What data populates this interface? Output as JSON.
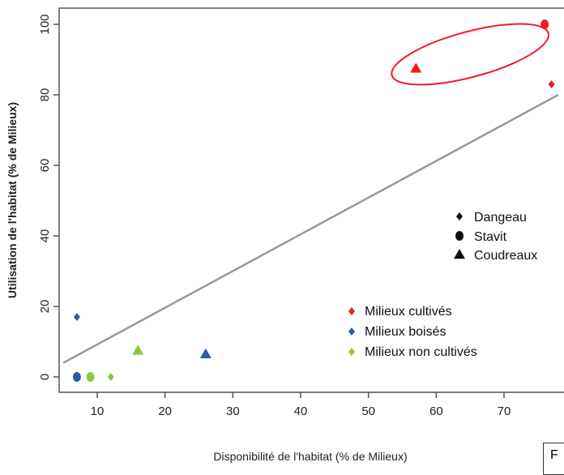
{
  "chart_data": {
    "type": "scatter",
    "xlabel": "Disponibilité de l'habitat (% de Milieux)",
    "ylabel": "Utilisation de l'habitat (% de Milieux)",
    "xlim": [
      5,
      78
    ],
    "ylim": [
      -5,
      105
    ],
    "xticks": [
      10,
      20,
      30,
      40,
      50,
      60,
      70
    ],
    "yticks": [
      0,
      20,
      40,
      60,
      80,
      100
    ],
    "grid": false,
    "reference_line": {
      "x": [
        5,
        78
      ],
      "y": [
        4,
        80
      ]
    },
    "highlight_ellipse": {
      "center": [
        65,
        91.5
      ]
    },
    "colors": {
      "cultives": "#ee1c25",
      "boises": "#2c5d9e",
      "non_cultives": "#8dc63f"
    },
    "legend_sites": [
      {
        "label": "Dangeau",
        "marker": "small-dot"
      },
      {
        "label": "Stavit",
        "marker": "dot"
      },
      {
        "label": "Coudreaux",
        "marker": "triangle"
      }
    ],
    "legend_habitats": [
      {
        "label": "Milieux cultivés",
        "color_key": "cultives"
      },
      {
        "label": "Milieux boisés",
        "color_key": "boises"
      },
      {
        "label": "Milieux non cultivés",
        "color_key": "non_cultives"
      }
    ],
    "points": [
      {
        "x": 76,
        "y": 100,
        "site": "Stavit",
        "habitat": "cultives",
        "marker": "dot"
      },
      {
        "x": 57,
        "y": 87.5,
        "site": "Coudreaux",
        "habitat": "cultives",
        "marker": "triangle"
      },
      {
        "x": 77,
        "y": 83,
        "site": "Dangeau",
        "habitat": "cultives",
        "marker": "small-dot"
      },
      {
        "x": 7,
        "y": 17,
        "site": "Dangeau",
        "habitat": "boises",
        "marker": "small-dot"
      },
      {
        "x": 7,
        "y": 0,
        "site": "Stavit",
        "habitat": "boises",
        "marker": "dot"
      },
      {
        "x": 26,
        "y": 6.5,
        "site": "Coudreaux",
        "habitat": "boises",
        "marker": "triangle"
      },
      {
        "x": 9,
        "y": 0,
        "site": "Stavit",
        "habitat": "non_cultives",
        "marker": "dot"
      },
      {
        "x": 12,
        "y": 0,
        "site": "Dangeau",
        "habitat": "non_cultives",
        "marker": "small-dot"
      },
      {
        "x": 16,
        "y": 7.5,
        "site": "Coudreaux",
        "habitat": "non_cultives",
        "marker": "triangle"
      }
    ]
  },
  "corner_box_text": "F"
}
